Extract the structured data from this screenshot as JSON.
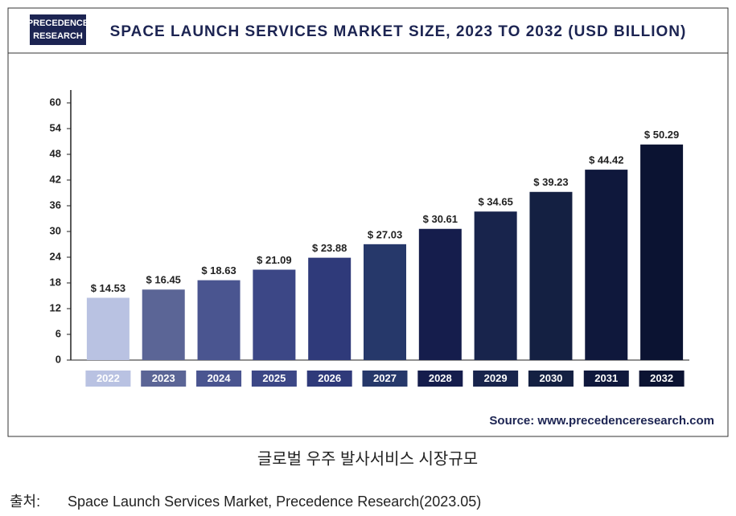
{
  "logo": {
    "line1": "PRECEDENCE",
    "line2": "RESEARCH"
  },
  "chart_data": {
    "type": "bar",
    "title": "SPACE LAUNCH SERVICES MARKET SIZE, 2023 TO 2032 (USD BILLION)",
    "categories": [
      "2022",
      "2023",
      "2024",
      "2025",
      "2026",
      "2027",
      "2028",
      "2029",
      "2030",
      "2031",
      "2032"
    ],
    "values": [
      14.53,
      16.45,
      18.63,
      21.09,
      23.88,
      27.03,
      30.61,
      34.65,
      39.23,
      44.42,
      50.29
    ],
    "value_labels": [
      "$ 14.53",
      "$ 16.45",
      "$ 18.63",
      "$ 21.09",
      "$ 23.88",
      "$ 27.03",
      "$ 30.61",
      "$ 34.65",
      "$ 39.23",
      "$ 44.42",
      "$ 50.29"
    ],
    "colors": [
      "#b9c2e2",
      "#5b6596",
      "#4a5590",
      "#3c4786",
      "#2f3a7a",
      "#26386a",
      "#151d4c",
      "#18244c",
      "#142042",
      "#0f183c",
      "#0b1332"
    ],
    "ylim": [
      0,
      60
    ],
    "yticks": [
      0,
      6,
      12,
      18,
      24,
      30,
      36,
      42,
      48,
      54,
      60
    ],
    "grid": false,
    "source": "Source: www.precedenceresearch.com"
  },
  "caption": "글로벌 우주 발사서비스 시장규모",
  "citation": {
    "label": "출처:",
    "text": "Space Launch Services Market, Precedence Research(2023.05)"
  }
}
